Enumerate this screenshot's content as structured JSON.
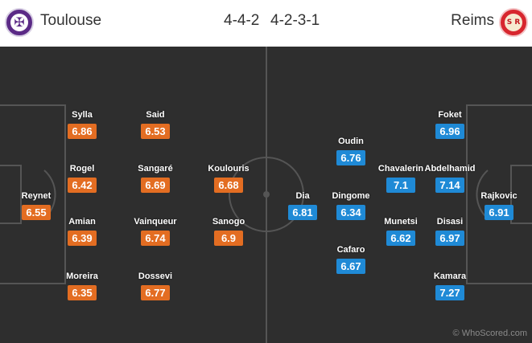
{
  "home": {
    "name": "Toulouse",
    "formation": "4-4-2",
    "crest_color": "#5b2a86",
    "rating_color": "#e36d22",
    "players": [
      {
        "name": "Reynet",
        "rating": "6.55"
      },
      {
        "name": "Sylla",
        "rating": "6.86"
      },
      {
        "name": "Rogel",
        "rating": "6.42"
      },
      {
        "name": "Amian",
        "rating": "6.39"
      },
      {
        "name": "Moreira",
        "rating": "6.35"
      },
      {
        "name": "Said",
        "rating": "6.53"
      },
      {
        "name": "Sangaré",
        "rating": "6.69"
      },
      {
        "name": "Vainqueur",
        "rating": "6.74"
      },
      {
        "name": "Dossevi",
        "rating": "6.77"
      },
      {
        "name": "Koulouris",
        "rating": "6.68"
      },
      {
        "name": "Sanogo",
        "rating": "6.9"
      }
    ]
  },
  "away": {
    "name": "Reims",
    "formation": "4-2-3-1",
    "crest_color": "#d7262e",
    "rating_color": "#1f8ad6",
    "players": [
      {
        "name": "Rajkovic",
        "rating": "6.91"
      },
      {
        "name": "Foket",
        "rating": "6.96"
      },
      {
        "name": "Abdelhamid",
        "rating": "7.14"
      },
      {
        "name": "Disasi",
        "rating": "6.97"
      },
      {
        "name": "Kamara",
        "rating": "7.27"
      },
      {
        "name": "Chavalerin",
        "rating": "7.1"
      },
      {
        "name": "Munetsi",
        "rating": "6.62"
      },
      {
        "name": "Oudin",
        "rating": "6.76"
      },
      {
        "name": "Dingome",
        "rating": "6.34"
      },
      {
        "name": "Cafaro",
        "rating": "6.67"
      },
      {
        "name": "Dia",
        "rating": "6.81"
      }
    ]
  },
  "watermark": "© WhoScored.com",
  "icons": {
    "home_crest": "toulouse-crest-icon",
    "away_crest": "reims-crest-icon"
  }
}
